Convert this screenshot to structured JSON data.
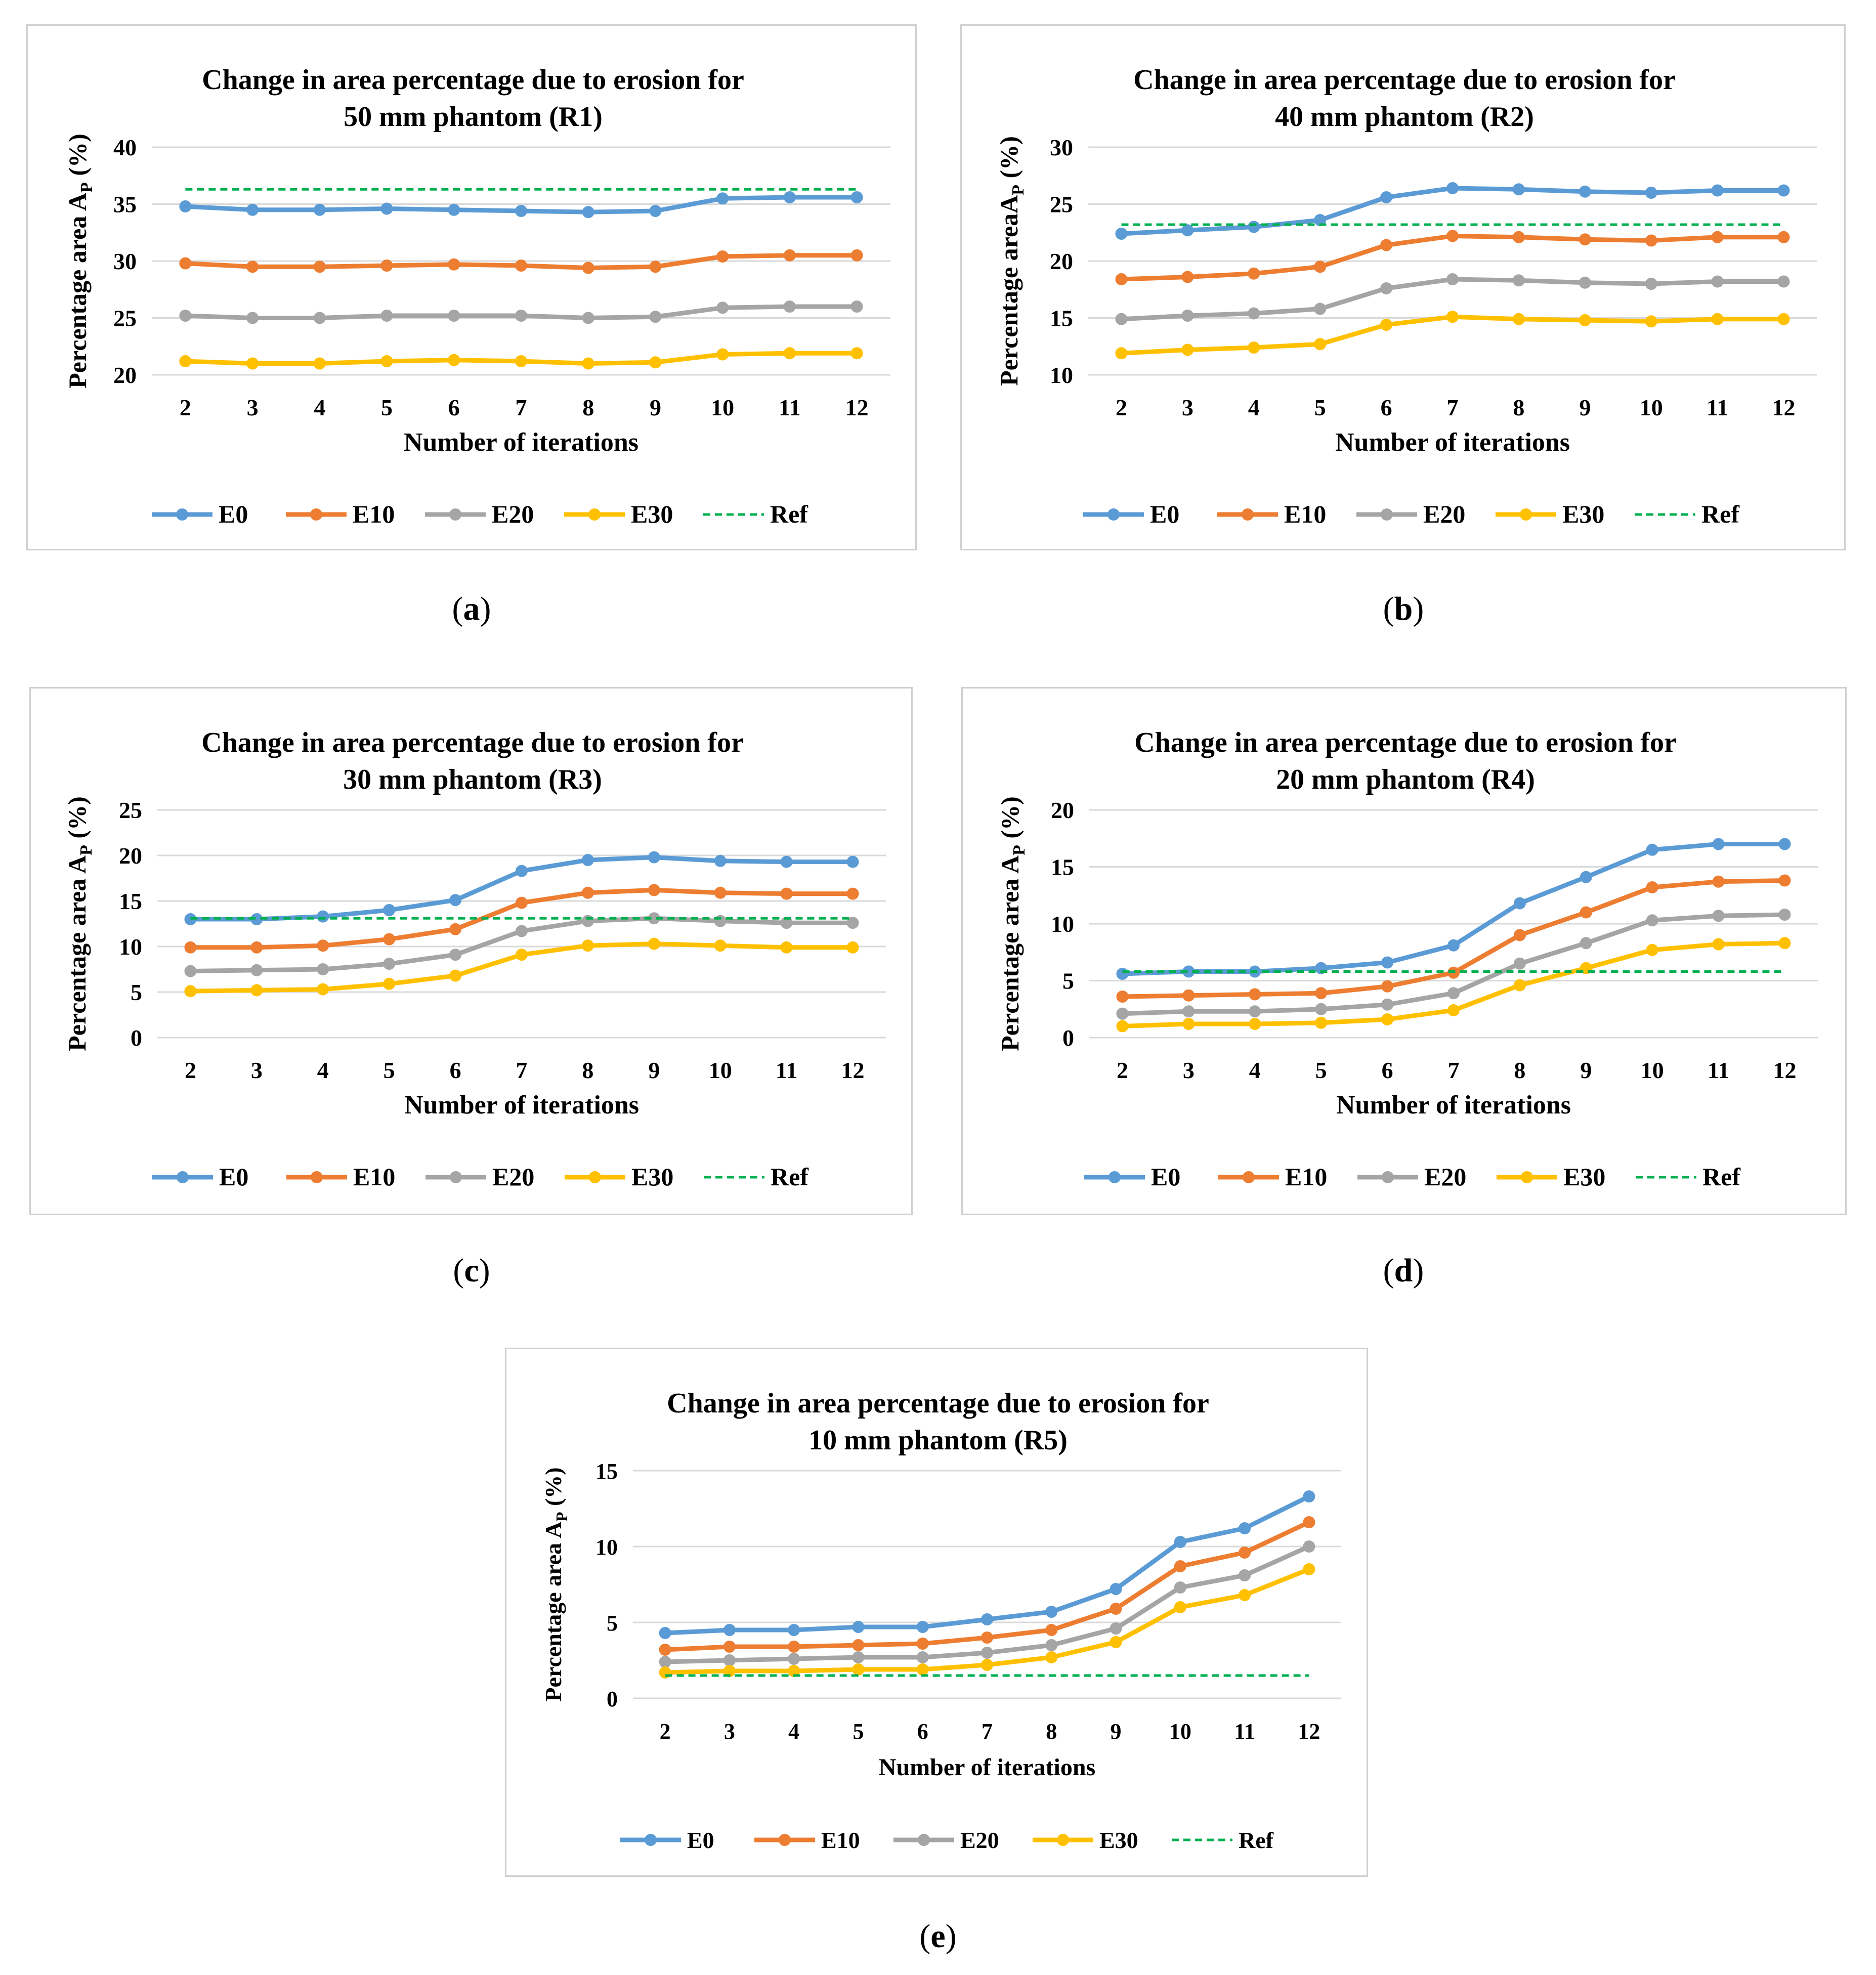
{
  "chart_data": [
    {
      "type": "line",
      "panel": "a",
      "title": [
        "Change in area percentage due to erosion for",
        "50 mm phantom (R1)"
      ],
      "xlabel": "Number of iterations",
      "ylabel": "Percentage area A",
      "ylabel_sub": "P",
      "ylabel_unit": "(%)",
      "categories": [
        "2",
        "3",
        "4",
        "5",
        "6",
        "7",
        "8",
        "9",
        "10",
        "11",
        "12"
      ],
      "ylim": [
        20,
        40
      ],
      "yticks": [
        20,
        25,
        30,
        35,
        40
      ],
      "series": [
        {
          "name": "E0",
          "color": "#5b9bd5",
          "dashed": false,
          "values": [
            34.8,
            34.5,
            34.5,
            34.6,
            34.5,
            34.4,
            34.3,
            34.4,
            35.5,
            35.6,
            35.6
          ]
        },
        {
          "name": "E10",
          "color": "#ed7d31",
          "dashed": false,
          "values": [
            29.8,
            29.5,
            29.5,
            29.6,
            29.7,
            29.6,
            29.4,
            29.5,
            30.4,
            30.5,
            30.5
          ]
        },
        {
          "name": "E20",
          "color": "#a5a5a5",
          "dashed": false,
          "values": [
            25.2,
            25.0,
            25.0,
            25.2,
            25.2,
            25.2,
            25.0,
            25.1,
            25.9,
            26.0,
            26.0
          ]
        },
        {
          "name": "E30",
          "color": "#ffc000",
          "dashed": false,
          "values": [
            21.2,
            21.0,
            21.0,
            21.2,
            21.3,
            21.2,
            21.0,
            21.1,
            21.8,
            21.9,
            21.9
          ]
        },
        {
          "name": "Ref",
          "color": "#00b050",
          "dashed": true,
          "values": [
            36.3,
            36.3,
            36.3,
            36.3,
            36.3,
            36.3,
            36.3,
            36.3,
            36.3,
            36.3,
            36.3
          ]
        }
      ]
    },
    {
      "type": "line",
      "panel": "b",
      "title": [
        "Change in area percentage due to erosion for",
        "40 mm phantom (R2)"
      ],
      "xlabel": "Number of iterations",
      "ylabel": "Percentage areaA",
      "ylabel_sub": "P",
      "ylabel_unit": "(%)",
      "categories": [
        "2",
        "3",
        "4",
        "5",
        "6",
        "7",
        "8",
        "9",
        "10",
        "11",
        "12"
      ],
      "ylim": [
        10,
        30
      ],
      "yticks": [
        10,
        15,
        20,
        25,
        30
      ],
      "series": [
        {
          "name": "E0",
          "color": "#5b9bd5",
          "dashed": false,
          "values": [
            22.4,
            22.7,
            23.0,
            23.6,
            25.6,
            26.4,
            26.3,
            26.1,
            26.0,
            26.2,
            26.2
          ]
        },
        {
          "name": "E10",
          "color": "#ed7d31",
          "dashed": false,
          "values": [
            18.4,
            18.6,
            18.9,
            19.5,
            21.4,
            22.2,
            22.1,
            21.9,
            21.8,
            22.1,
            22.1
          ]
        },
        {
          "name": "E20",
          "color": "#a5a5a5",
          "dashed": false,
          "values": [
            14.9,
            15.2,
            15.4,
            15.8,
            17.6,
            18.4,
            18.3,
            18.1,
            18.0,
            18.2,
            18.2
          ]
        },
        {
          "name": "E30",
          "color": "#ffc000",
          "dashed": false,
          "values": [
            11.9,
            12.2,
            12.4,
            12.7,
            14.4,
            15.1,
            14.9,
            14.8,
            14.7,
            14.9,
            14.9
          ]
        },
        {
          "name": "Ref",
          "color": "#00b050",
          "dashed": true,
          "values": [
            23.2,
            23.2,
            23.2,
            23.2,
            23.2,
            23.2,
            23.2,
            23.2,
            23.2,
            23.2,
            23.2
          ]
        }
      ]
    },
    {
      "type": "line",
      "panel": "c",
      "title": [
        "Change in area percentage due to erosion for",
        "30 mm phantom (R3)"
      ],
      "xlabel": "Number of iterations",
      "ylabel": "Percentage area A",
      "ylabel_sub": "P",
      "ylabel_unit": "(%)",
      "categories": [
        "2",
        "3",
        "4",
        "5",
        "6",
        "7",
        "8",
        "9",
        "10",
        "11",
        "12"
      ],
      "ylim": [
        0,
        25
      ],
      "yticks": [
        0,
        5,
        10,
        15,
        20,
        25
      ],
      "series": [
        {
          "name": "E0",
          "color": "#5b9bd5",
          "dashed": false,
          "values": [
            13.0,
            13.0,
            13.3,
            14.0,
            15.1,
            18.3,
            19.5,
            19.8,
            19.4,
            19.3,
            19.3
          ]
        },
        {
          "name": "E10",
          "color": "#ed7d31",
          "dashed": false,
          "values": [
            9.9,
            9.9,
            10.1,
            10.8,
            11.9,
            14.8,
            15.9,
            16.2,
            15.9,
            15.8,
            15.8
          ]
        },
        {
          "name": "E20",
          "color": "#a5a5a5",
          "dashed": false,
          "values": [
            7.3,
            7.4,
            7.5,
            8.1,
            9.1,
            11.7,
            12.8,
            13.1,
            12.8,
            12.6,
            12.6
          ]
        },
        {
          "name": "E30",
          "color": "#ffc000",
          "dashed": false,
          "values": [
            5.1,
            5.2,
            5.3,
            5.9,
            6.8,
            9.1,
            10.1,
            10.3,
            10.1,
            9.9,
            9.9
          ]
        },
        {
          "name": "Ref",
          "color": "#00b050",
          "dashed": true,
          "values": [
            13.1,
            13.1,
            13.1,
            13.1,
            13.1,
            13.1,
            13.1,
            13.1,
            13.1,
            13.1,
            13.1
          ]
        }
      ]
    },
    {
      "type": "line",
      "panel": "d",
      "title": [
        "Change in area percentage due to erosion for",
        "20 mm phantom (R4)"
      ],
      "xlabel": "Number of iterations",
      "ylabel": "Percentage area A",
      "ylabel_sub": "P",
      "ylabel_unit": "(%)",
      "categories": [
        "2",
        "3",
        "4",
        "5",
        "6",
        "7",
        "8",
        "9",
        "10",
        "11",
        "12"
      ],
      "ylim": [
        0,
        20
      ],
      "yticks": [
        0,
        5,
        10,
        15,
        20
      ],
      "series": [
        {
          "name": "E0",
          "color": "#5b9bd5",
          "dashed": false,
          "values": [
            5.6,
            5.8,
            5.8,
            6.1,
            6.6,
            8.1,
            11.8,
            14.1,
            16.5,
            17.0,
            17.0
          ]
        },
        {
          "name": "E10",
          "color": "#ed7d31",
          "dashed": false,
          "values": [
            3.6,
            3.7,
            3.8,
            3.9,
            4.5,
            5.7,
            9.0,
            11.0,
            13.2,
            13.7,
            13.8
          ]
        },
        {
          "name": "E20",
          "color": "#a5a5a5",
          "dashed": false,
          "values": [
            2.1,
            2.3,
            2.3,
            2.5,
            2.9,
            3.9,
            6.5,
            8.3,
            10.3,
            10.7,
            10.8
          ]
        },
        {
          "name": "E30",
          "color": "#ffc000",
          "dashed": false,
          "values": [
            1.0,
            1.2,
            1.2,
            1.3,
            1.6,
            2.4,
            4.6,
            6.1,
            7.7,
            8.2,
            8.3
          ]
        },
        {
          "name": "Ref",
          "color": "#00b050",
          "dashed": true,
          "values": [
            5.8,
            5.8,
            5.8,
            5.8,
            5.8,
            5.8,
            5.8,
            5.8,
            5.8,
            5.8,
            5.8
          ]
        }
      ]
    },
    {
      "type": "line",
      "panel": "e",
      "title": [
        "Change in area percentage due to erosion for",
        "10 mm phantom (R5)"
      ],
      "xlabel": "Number of iterations",
      "ylabel": "Percentage area A",
      "ylabel_sub": "P",
      "ylabel_unit": "(%)",
      "categories": [
        "2",
        "3",
        "4",
        "5",
        "6",
        "7",
        "8",
        "9",
        "10",
        "11",
        "12"
      ],
      "ylim": [
        0,
        15
      ],
      "yticks": [
        0,
        5,
        10,
        15
      ],
      "series": [
        {
          "name": "E0",
          "color": "#5b9bd5",
          "dashed": false,
          "values": [
            4.3,
            4.5,
            4.5,
            4.7,
            4.7,
            5.2,
            5.7,
            7.2,
            10.3,
            11.2,
            13.3
          ]
        },
        {
          "name": "E10",
          "color": "#ed7d31",
          "dashed": false,
          "values": [
            3.2,
            3.4,
            3.4,
            3.5,
            3.6,
            4.0,
            4.5,
            5.9,
            8.7,
            9.6,
            11.6
          ]
        },
        {
          "name": "E20",
          "color": "#a5a5a5",
          "dashed": false,
          "values": [
            2.4,
            2.5,
            2.6,
            2.7,
            2.7,
            3.0,
            3.5,
            4.6,
            7.3,
            8.1,
            10.0
          ]
        },
        {
          "name": "E30",
          "color": "#ffc000",
          "dashed": false,
          "values": [
            1.7,
            1.8,
            1.8,
            1.9,
            1.9,
            2.2,
            2.7,
            3.7,
            6.0,
            6.8,
            8.5
          ]
        },
        {
          "name": "Ref",
          "color": "#00b050",
          "dashed": true,
          "values": [
            1.5,
            1.5,
            1.5,
            1.5,
            1.5,
            1.5,
            1.5,
            1.5,
            1.5,
            1.5,
            1.5
          ]
        }
      ]
    }
  ],
  "captions": {
    "a": "a",
    "b": "b",
    "c": "c",
    "d": "d",
    "e": "e"
  }
}
